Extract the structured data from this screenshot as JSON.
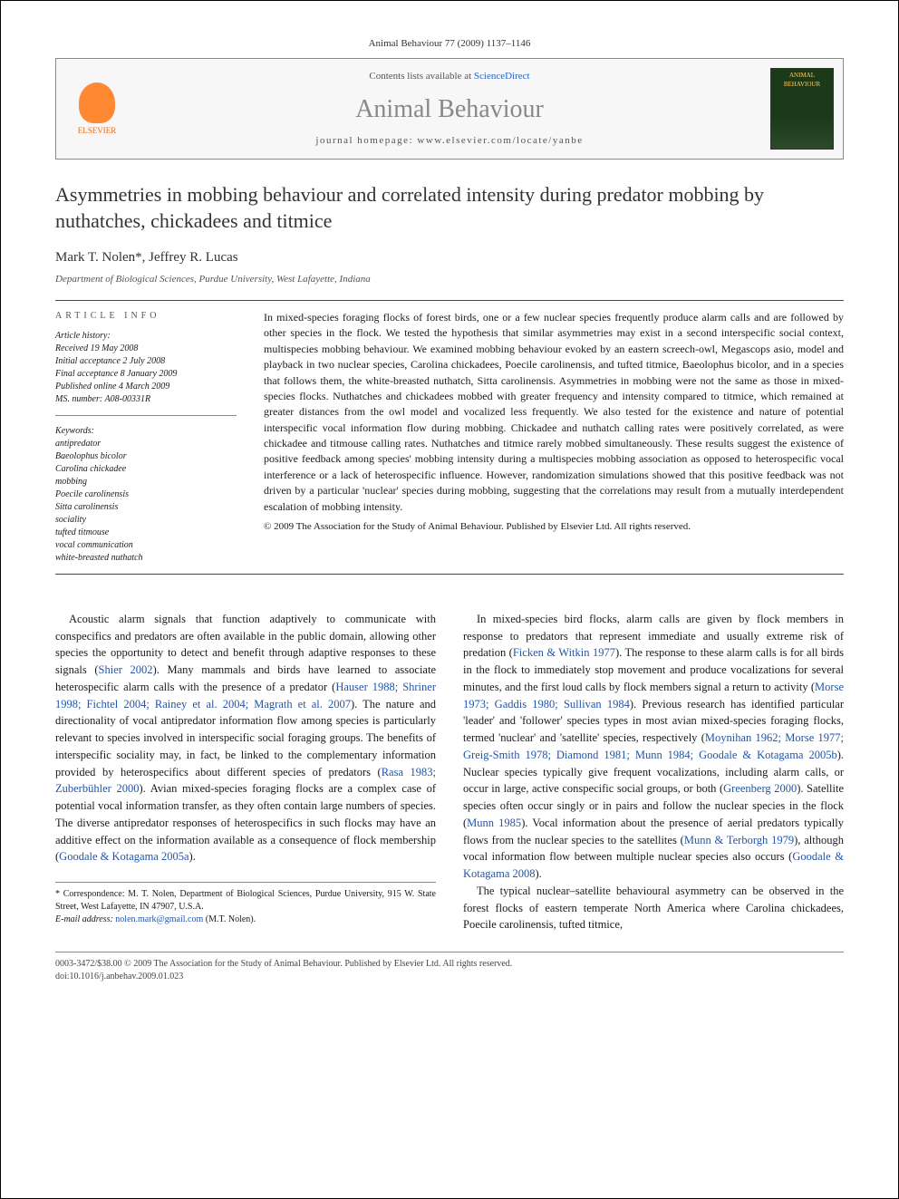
{
  "journal_citation": "Animal Behaviour 77 (2009) 1137–1146",
  "contents_bar": {
    "contents_text": "Contents lists available at ",
    "sd_link": "ScienceDirect",
    "journal_name": "Animal Behaviour",
    "homepage_prefix": "journal homepage: ",
    "homepage_url": "www.elsevier.com/locate/yanbe",
    "elsevier_label": "ELSEVIER",
    "cover_text": "ANIMAL BEHAVIOUR"
  },
  "title": "Asymmetries in mobbing behaviour and correlated intensity during predator mobbing by nuthatches, chickadees and titmice",
  "authors": "Mark T. Nolen*, Jeffrey R. Lucas",
  "affiliation": "Department of Biological Sciences, Purdue University, West Lafayette, Indiana",
  "article_info_heading": "ARTICLE INFO",
  "history": {
    "label": "Article history:",
    "received": "Received 19 May 2008",
    "initial": "Initial acceptance 2 July 2008",
    "final": "Final acceptance 8 January 2009",
    "published": "Published online 4 March 2009",
    "ms": "MS. number: A08-00331R"
  },
  "keywords": {
    "label": "Keywords:",
    "items": [
      "antipredator",
      "Baeolophus bicolor",
      "Carolina chickadee",
      "mobbing",
      "Poecile carolinensis",
      "Sitta carolinensis",
      "sociality",
      "tufted titmouse",
      "vocal communication",
      "white-breasted nuthatch"
    ]
  },
  "abstract": "In mixed-species foraging flocks of forest birds, one or a few nuclear species frequently produce alarm calls and are followed by other species in the flock. We tested the hypothesis that similar asymmetries may exist in a second interspecific social context, multispecies mobbing behaviour. We examined mobbing behaviour evoked by an eastern screech-owl, Megascops asio, model and playback in two nuclear species, Carolina chickadees, Poecile carolinensis, and tufted titmice, Baeolophus bicolor, and in a species that follows them, the white-breasted nuthatch, Sitta carolinensis. Asymmetries in mobbing were not the same as those in mixed-species flocks. Nuthatches and chickadees mobbed with greater frequency and intensity compared to titmice, which remained at greater distances from the owl model and vocalized less frequently. We also tested for the existence and nature of potential interspecific vocal information flow during mobbing. Chickadee and nuthatch calling rates were positively correlated, as were chickadee and titmouse calling rates. Nuthatches and titmice rarely mobbed simultaneously. These results suggest the existence of positive feedback among species' mobbing intensity during a multispecies mobbing association as opposed to heterospecific vocal interference or a lack of heterospecific influence. However, randomization simulations showed that this positive feedback was not driven by a particular 'nuclear' species during mobbing, suggesting that the correlations may result from a mutually interdependent escalation of mobbing intensity.",
  "copyright": "© 2009 The Association for the Study of Animal Behaviour. Published by Elsevier Ltd. All rights reserved.",
  "body": {
    "col1": {
      "p1_pre": "Acoustic alarm signals that function adaptively to communicate with conspecifics and predators are often available in the public domain, allowing other species the opportunity to detect and benefit through adaptive responses to these signals (",
      "c1": "Shier 2002",
      "p1_mid1": "). Many mammals and birds have learned to associate heterospecific alarm calls with the presence of a predator (",
      "c2": "Hauser 1988; Shriner 1998; Fichtel 2004; Rainey et al. 2004; Magrath et al. 2007",
      "p1_mid2": "). The nature and directionality of vocal antipredator information flow among species is particularly relevant to species involved in interspecific social foraging groups. The benefits of interspecific sociality may, in fact, be linked to the complementary information provided by heterospecifics about different species of predators (",
      "c3": "Rasa 1983; Zuberbühler 2000",
      "p1_mid3": "). Avian mixed-species foraging flocks are a complex case of potential vocal information transfer, as they often contain large numbers of species. The diverse antipredator responses of heterospecifics in such flocks may have an additive effect on the information available as a consequence of flock membership (",
      "c4": "Goodale & Kotagama 2005a",
      "p1_end": ")."
    },
    "col2": {
      "p1_pre": "In mixed-species bird flocks, alarm calls are given by flock members in response to predators that represent immediate and usually extreme risk of predation (",
      "c1": "Ficken & Witkin 1977",
      "p1_mid1": "). The response to these alarm calls is for all birds in the flock to immediately stop movement and produce vocalizations for several minutes, and the first loud calls by flock members signal a return to activity (",
      "c2": "Morse 1973; Gaddis 1980; Sullivan 1984",
      "p1_mid2": "). Previous research has identified particular 'leader' and 'follower' species types in most avian mixed-species foraging flocks, termed 'nuclear' and 'satellite' species, respectively (",
      "c3": "Moynihan 1962; Morse 1977; Greig-Smith 1978; Diamond 1981; Munn 1984; Goodale & Kotagama 2005b",
      "p1_mid3": "). Nuclear species typically give frequent vocalizations, including alarm calls, or occur in large, active conspecific social groups, or both (",
      "c4": "Greenberg 2000",
      "p1_mid4": "). Satellite species often occur singly or in pairs and follow the nuclear species in the flock (",
      "c5": "Munn 1985",
      "p1_mid5": "). Vocal information about the presence of aerial predators typically flows from the nuclear species to the satellites (",
      "c6": "Munn & Terborgh 1979",
      "p1_mid6": "), although vocal information flow between multiple nuclear species also occurs (",
      "c7": "Goodale & Kotagama 2008",
      "p1_end": ").",
      "p2": "The typical nuclear–satellite behavioural asymmetry can be observed in the forest flocks of eastern temperate North America where Carolina chickadees, Poecile carolinensis, tufted titmice,"
    }
  },
  "correspondence": {
    "line1": "* Correspondence: M. T. Nolen, Department of Biological Sciences, Purdue University, 915 W. State Street, West Lafayette, IN 47907, U.S.A.",
    "email_label": "E-mail address: ",
    "email": "nolen.mark@gmail.com",
    "email_suffix": " (M.T. Nolen)."
  },
  "footer": {
    "line1": "0003-3472/$38.00 © 2009 The Association for the Study of Animal Behaviour. Published by Elsevier Ltd. All rights reserved.",
    "line2": "doi:10.1016/j.anbehav.2009.01.023"
  },
  "colors": {
    "link": "#2255aa",
    "elsevier": "#ff6600",
    "text": "#1a1a1a",
    "border": "#444444"
  }
}
